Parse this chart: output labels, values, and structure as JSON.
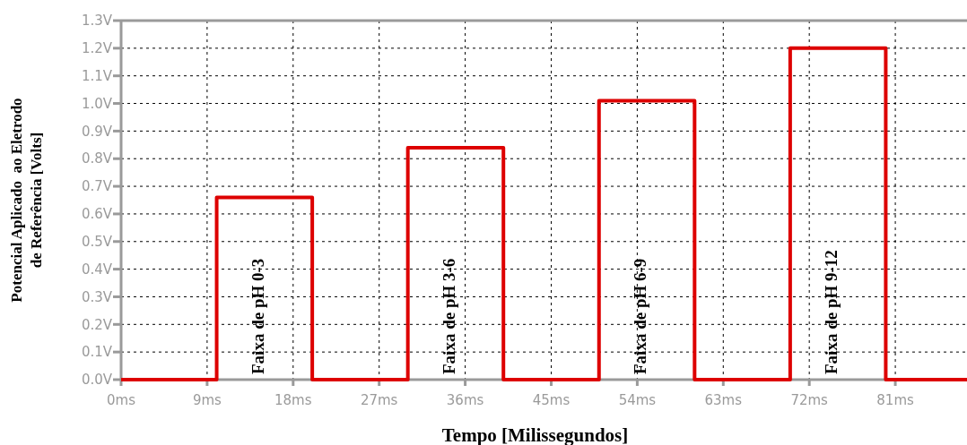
{
  "chart_data": {
    "type": "step",
    "xlabel": "Tempo [Milissegundos]",
    "ylabel": "Potencial Aplicado  ao Eletrodo\nde Referência [Volts]",
    "x": [
      0,
      10,
      20,
      30,
      40,
      50,
      60,
      70,
      80,
      88.5
    ],
    "series": [
      {
        "color": "#dd0000",
        "values": [
          0,
          0.66,
          0,
          0.84,
          0,
          1.01,
          0,
          1.2,
          0,
          0
        ]
      }
    ],
    "xlim": [
      0,
      88.5
    ],
    "xticks": [
      {
        "value": 0,
        "label": "0ms"
      },
      {
        "value": 9,
        "label": "9ms"
      },
      {
        "value": 18,
        "label": "18ms"
      },
      {
        "value": 27,
        "label": "27ms"
      },
      {
        "value": 36,
        "label": "36ms"
      },
      {
        "value": 45,
        "label": "45ms"
      },
      {
        "value": 54,
        "label": "54ms"
      },
      {
        "value": 63,
        "label": "63ms"
      },
      {
        "value": 72,
        "label": "72ms"
      },
      {
        "value": 81,
        "label": "81ms"
      }
    ],
    "ylim": [
      0,
      1.3
    ],
    "yticks": [
      {
        "value": 0,
        "label": "0.0V"
      },
      {
        "value": 0.1,
        "label": "0.1V"
      },
      {
        "value": 0.2,
        "label": "0.2V"
      },
      {
        "value": 0.3,
        "label": "0.3V"
      },
      {
        "value": 0.4,
        "label": "0.4V"
      },
      {
        "value": 0.5,
        "label": "0.5V"
      },
      {
        "value": 0.6,
        "label": "0.6V"
      },
      {
        "value": 0.7,
        "label": "0.7V"
      },
      {
        "value": 0.8,
        "label": "0.8V"
      },
      {
        "value": 0.9,
        "label": "0.9V"
      },
      {
        "value": 1.0,
        "label": "1.0V"
      },
      {
        "value": 1.1,
        "label": "1.1V"
      },
      {
        "value": 1.2,
        "label": "1.2V"
      },
      {
        "value": 1.3,
        "label": "1.3V"
      }
    ],
    "grid": true,
    "line_style": "solid",
    "annotations": [
      "Faixa de pH 0-3",
      "Faixa de pH 3-6",
      "Faixa de pH 6-9",
      "Faixa de pH 9-12"
    ]
  }
}
